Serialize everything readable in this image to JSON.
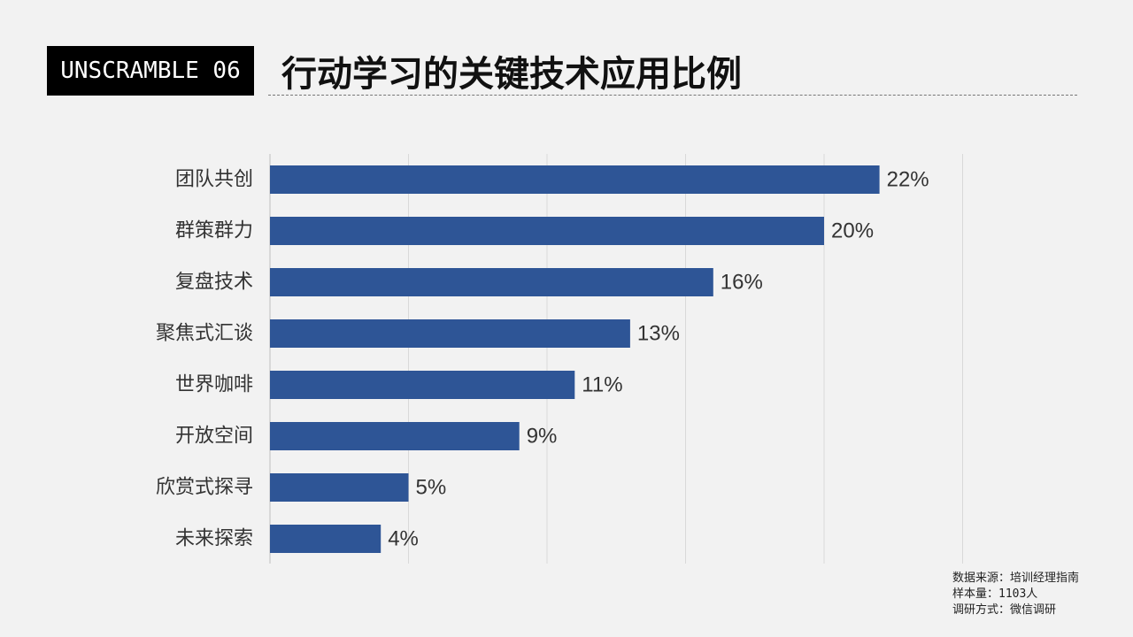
{
  "header": {
    "badge": "UNSCRAMBLE 06",
    "title": "行动学习的关键技术应用比例"
  },
  "footer": {
    "source": "数据来源：培训经理指南",
    "sample": "样本量：1103人",
    "method": "调研方式：微信调研"
  },
  "colors": {
    "bar": "#2e5596",
    "background": "#f2f2f2",
    "grid": "#d9d9d9"
  },
  "chart_data": {
    "type": "bar",
    "orientation": "horizontal",
    "categories": [
      "团队共创",
      "群策群力",
      "复盘技术",
      "聚焦式汇谈",
      "世界咖啡",
      "开放空间",
      "欣赏式探寻",
      "未来探索"
    ],
    "values": [
      22,
      20,
      16,
      13,
      11,
      9,
      5,
      4
    ],
    "value_labels": [
      "22%",
      "20%",
      "16%",
      "13%",
      "11%",
      "9%",
      "5%",
      "4%"
    ],
    "xlim": [
      0,
      25
    ],
    "gridlines": [
      0,
      5,
      10,
      15,
      20,
      25
    ],
    "grid": true,
    "legend": "none"
  }
}
